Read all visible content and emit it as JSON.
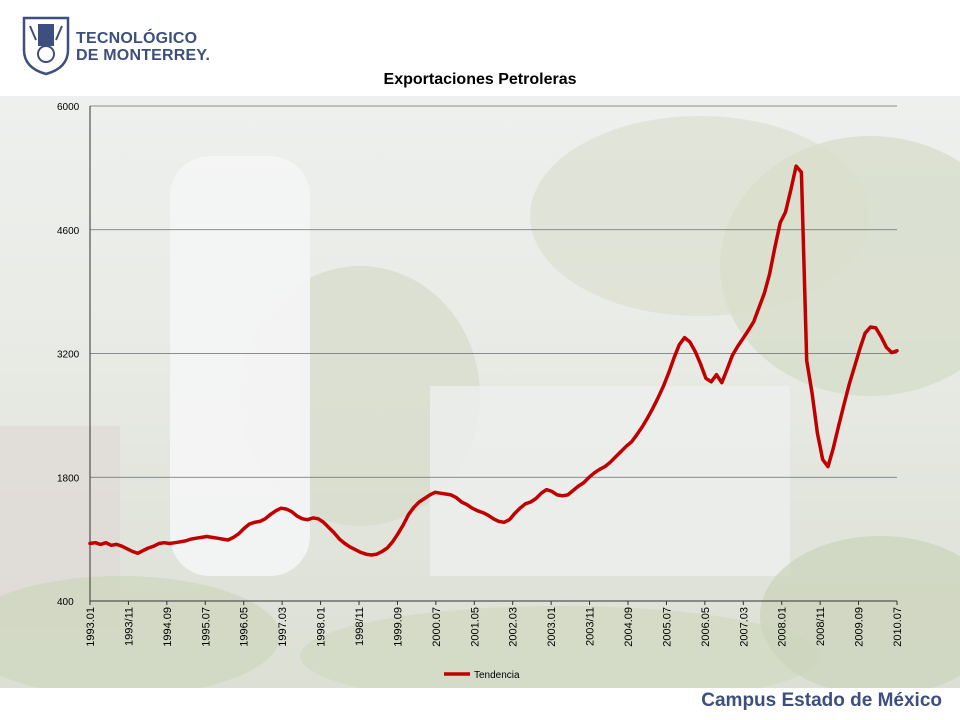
{
  "header": {
    "logo_line1": "TECNOLÓGICO",
    "logo_line2": "DE MONTERREY."
  },
  "footer": {
    "campus": "Campus Estado de México"
  },
  "chart_data": {
    "type": "line",
    "title": "Exportaciones Petroleras",
    "xlabel": "",
    "ylabel": "",
    "ylim": [
      400,
      6000
    ],
    "yticks": [
      400,
      1800,
      3200,
      4600,
      6000
    ],
    "grid": true,
    "legend_position": "bottom",
    "x_tick_labels": [
      "1993.01",
      "1993/11",
      "1994.09",
      "1995.07",
      "1996.05",
      "1997.03",
      "1998.01",
      "1998/11",
      "1999.09",
      "2000.07",
      "2001.05",
      "2002.03",
      "2003.01",
      "2003/11",
      "2004.09",
      "2005.07",
      "2006.05",
      "2007.03",
      "2008.01",
      "2008/11",
      "2009.09",
      "2010.07"
    ],
    "series": [
      {
        "name": "Tendencia",
        "color": "#c00000",
        "points": [
          [
            0,
            1050
          ],
          [
            1,
            1060
          ],
          [
            2,
            1040
          ],
          [
            3,
            1060
          ],
          [
            4,
            1030
          ],
          [
            5,
            1040
          ],
          [
            6,
            1020
          ],
          [
            7,
            990
          ],
          [
            8,
            960
          ],
          [
            9,
            940
          ],
          [
            10,
            970
          ],
          [
            11,
            1000
          ],
          [
            12,
            1020
          ],
          [
            13,
            1050
          ],
          [
            14,
            1060
          ],
          [
            15,
            1050
          ],
          [
            16,
            1060
          ],
          [
            17,
            1070
          ],
          [
            18,
            1080
          ],
          [
            19,
            1100
          ],
          [
            20,
            1110
          ],
          [
            21,
            1120
          ],
          [
            22,
            1130
          ],
          [
            23,
            1120
          ],
          [
            24,
            1110
          ],
          [
            25,
            1100
          ],
          [
            26,
            1090
          ],
          [
            27,
            1120
          ],
          [
            28,
            1160
          ],
          [
            29,
            1220
          ],
          [
            30,
            1270
          ],
          [
            31,
            1290
          ],
          [
            32,
            1300
          ],
          [
            33,
            1330
          ],
          [
            34,
            1380
          ],
          [
            35,
            1420
          ],
          [
            36,
            1450
          ],
          [
            37,
            1440
          ],
          [
            38,
            1410
          ],
          [
            39,
            1360
          ],
          [
            40,
            1330
          ],
          [
            41,
            1320
          ],
          [
            42,
            1340
          ],
          [
            43,
            1330
          ],
          [
            44,
            1290
          ],
          [
            45,
            1230
          ],
          [
            46,
            1170
          ],
          [
            47,
            1100
          ],
          [
            48,
            1050
          ],
          [
            49,
            1010
          ],
          [
            50,
            980
          ],
          [
            51,
            950
          ],
          [
            52,
            930
          ],
          [
            53,
            920
          ],
          [
            54,
            930
          ],
          [
            55,
            960
          ],
          [
            56,
            1000
          ],
          [
            57,
            1070
          ],
          [
            58,
            1160
          ],
          [
            59,
            1260
          ],
          [
            60,
            1380
          ],
          [
            61,
            1460
          ],
          [
            62,
            1520
          ],
          [
            63,
            1560
          ],
          [
            64,
            1600
          ],
          [
            65,
            1630
          ],
          [
            66,
            1620
          ],
          [
            67,
            1610
          ],
          [
            68,
            1600
          ],
          [
            69,
            1570
          ],
          [
            70,
            1520
          ],
          [
            71,
            1490
          ],
          [
            72,
            1450
          ],
          [
            73,
            1420
          ],
          [
            74,
            1400
          ],
          [
            75,
            1370
          ],
          [
            76,
            1330
          ],
          [
            77,
            1300
          ],
          [
            78,
            1290
          ],
          [
            79,
            1320
          ],
          [
            80,
            1390
          ],
          [
            81,
            1450
          ],
          [
            82,
            1500
          ],
          [
            83,
            1520
          ],
          [
            84,
            1560
          ],
          [
            85,
            1620
          ],
          [
            86,
            1660
          ],
          [
            87,
            1640
          ],
          [
            88,
            1600
          ],
          [
            89,
            1590
          ],
          [
            90,
            1600
          ],
          [
            91,
            1650
          ],
          [
            92,
            1700
          ],
          [
            93,
            1740
          ],
          [
            94,
            1800
          ],
          [
            95,
            1850
          ],
          [
            96,
            1890
          ],
          [
            97,
            1920
          ],
          [
            98,
            1970
          ],
          [
            99,
            2030
          ],
          [
            100,
            2090
          ],
          [
            101,
            2150
          ],
          [
            102,
            2200
          ],
          [
            103,
            2280
          ],
          [
            104,
            2370
          ],
          [
            105,
            2470
          ],
          [
            106,
            2580
          ],
          [
            107,
            2700
          ],
          [
            108,
            2830
          ],
          [
            109,
            2980
          ],
          [
            110,
            3150
          ],
          [
            111,
            3300
          ],
          [
            112,
            3380
          ],
          [
            113,
            3330
          ],
          [
            114,
            3220
          ],
          [
            115,
            3080
          ],
          [
            116,
            2920
          ],
          [
            117,
            2880
          ],
          [
            118,
            2960
          ],
          [
            119,
            2870
          ],
          [
            120,
            3020
          ],
          [
            121,
            3180
          ],
          [
            122,
            3280
          ],
          [
            123,
            3370
          ],
          [
            124,
            3460
          ],
          [
            125,
            3560
          ],
          [
            126,
            3720
          ],
          [
            127,
            3880
          ],
          [
            128,
            4100
          ],
          [
            129,
            4400
          ],
          [
            130,
            4680
          ],
          [
            131,
            4800
          ],
          [
            132,
            5050
          ],
          [
            133,
            5320
          ],
          [
            134,
            5250
          ],
          [
            135,
            3120
          ],
          [
            136,
            2750
          ],
          [
            137,
            2300
          ],
          [
            138,
            2000
          ],
          [
            139,
            1920
          ],
          [
            140,
            2130
          ],
          [
            141,
            2380
          ],
          [
            142,
            2620
          ],
          [
            143,
            2850
          ],
          [
            144,
            3050
          ],
          [
            145,
            3250
          ],
          [
            146,
            3430
          ],
          [
            147,
            3500
          ],
          [
            148,
            3490
          ],
          [
            149,
            3390
          ],
          [
            150,
            3270
          ],
          [
            151,
            3210
          ],
          [
            152,
            3230
          ]
        ]
      }
    ],
    "x_points": 153
  }
}
